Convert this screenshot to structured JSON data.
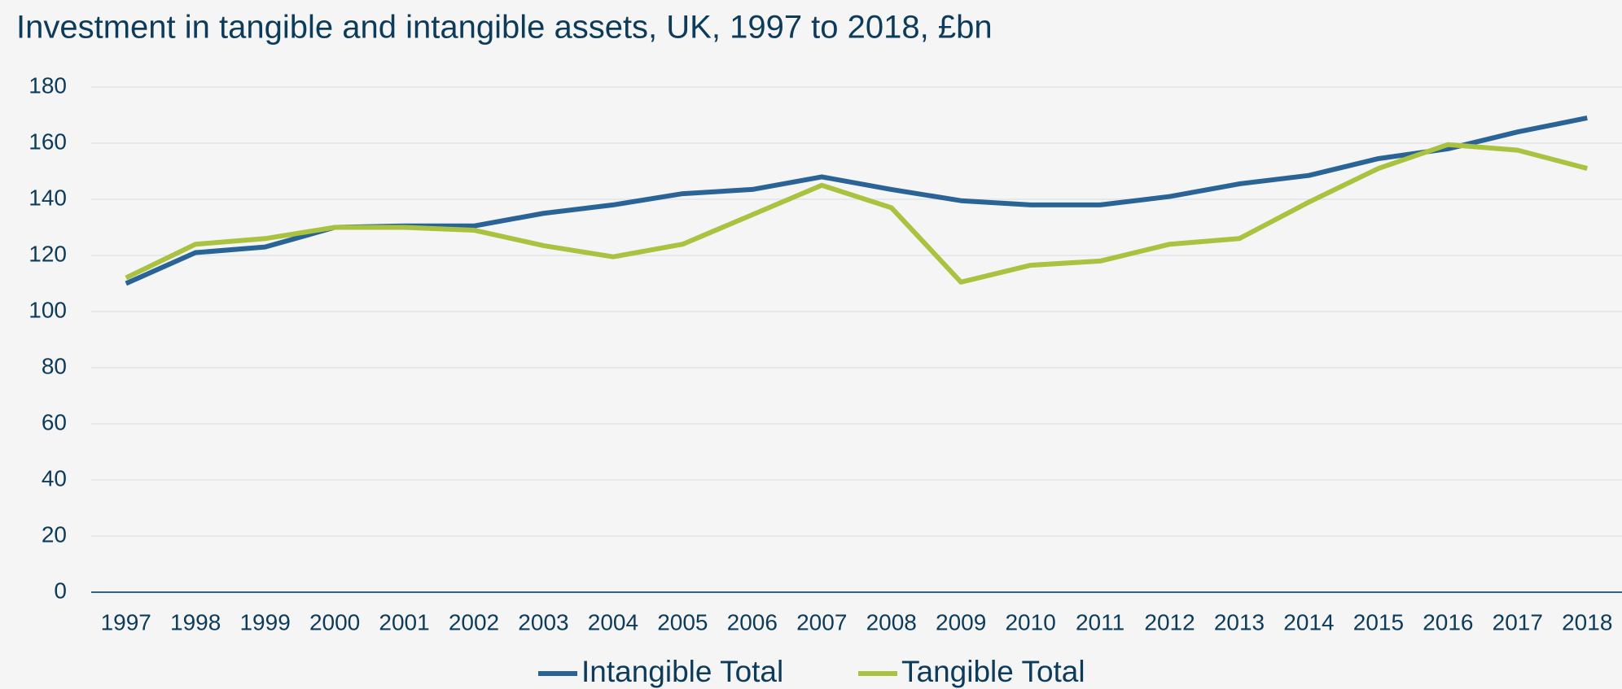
{
  "chart_data": {
    "type": "line",
    "title": "Investment in tangible and intangible assets, UK, 1997 to 2018, £bn",
    "categories": [
      "1997",
      "1998",
      "1999",
      "2000",
      "2001",
      "2002",
      "2003",
      "2004",
      "2005",
      "2006",
      "2007",
      "2008",
      "2009",
      "2010",
      "2011",
      "2012",
      "2013",
      "2014",
      "2015",
      "2016",
      "2017",
      "2018"
    ],
    "series": [
      {
        "name": "Intangible Total",
        "color": "#2a6496",
        "values": [
          110,
          121,
          123,
          130,
          130.5,
          130.5,
          135,
          138,
          142,
          143.5,
          148,
          143.5,
          139.5,
          138,
          138,
          141,
          145.5,
          148.5,
          154.5,
          158,
          164,
          169
        ]
      },
      {
        "name": "Tangible Total",
        "color": "#a9c23f",
        "values": [
          112,
          124,
          126,
          130,
          130,
          129,
          123.5,
          119.5,
          124,
          134.5,
          145,
          137,
          110.5,
          116.5,
          118,
          124,
          126,
          139,
          151,
          159.5,
          157.5,
          151
        ]
      }
    ],
    "ylim": [
      0,
      180
    ],
    "yticks": [
      0,
      20,
      40,
      60,
      80,
      100,
      120,
      140,
      160,
      180
    ],
    "grid": true,
    "legend": "bottom"
  }
}
